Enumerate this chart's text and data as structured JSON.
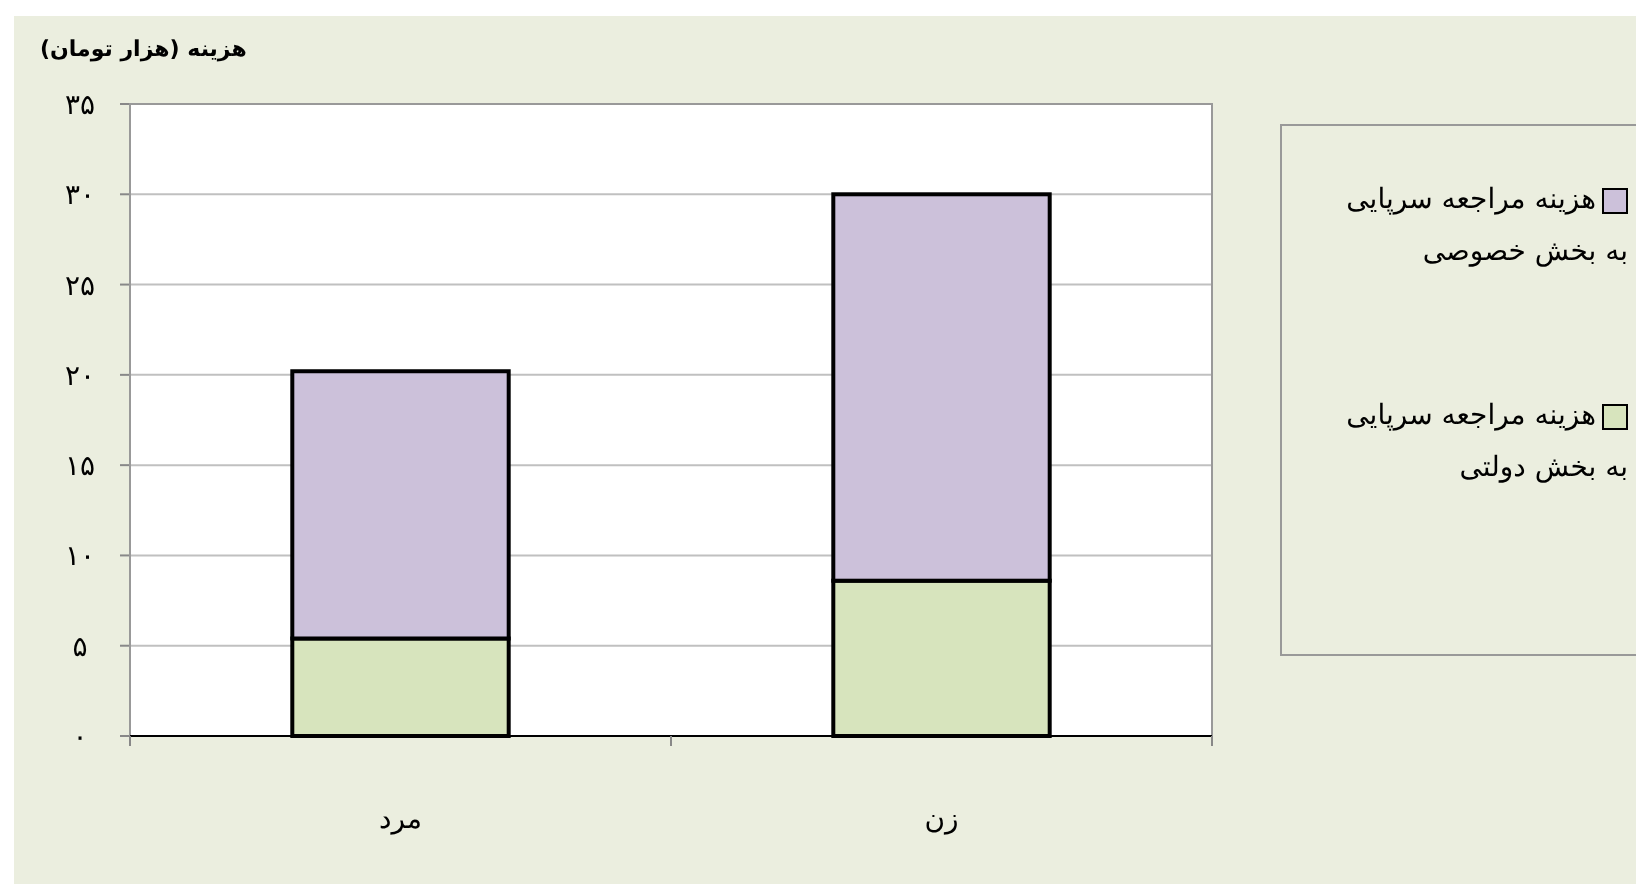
{
  "chart_data": {
    "type": "bar",
    "stacked": true,
    "ylabel": "هزینه (هزار تومان)",
    "categories": [
      "مرد",
      "زن"
    ],
    "series": [
      {
        "name": "هزینه مراجعه سرپایی به بخش دولتی",
        "color": "#d7e4bd",
        "values": [
          5.4,
          8.6
        ]
      },
      {
        "name": "هزینه مراجعه سرپایی به بخش خصوصی",
        "color": "#ccc1da",
        "values": [
          14.8,
          21.4
        ]
      }
    ],
    "ylim": [
      0,
      35
    ],
    "yticks": [
      {
        "value": 0,
        "label": "۰"
      },
      {
        "value": 5,
        "label": "۵"
      },
      {
        "value": 10,
        "label": "۱۰"
      },
      {
        "value": 15,
        "label": "۱۵"
      },
      {
        "value": 20,
        "label": "۲۰"
      },
      {
        "value": 25,
        "label": "۲۵"
      },
      {
        "value": 30,
        "label": "۳۰"
      },
      {
        "value": 35,
        "label": "۳۵"
      }
    ],
    "grid": "y",
    "legend": "right"
  }
}
